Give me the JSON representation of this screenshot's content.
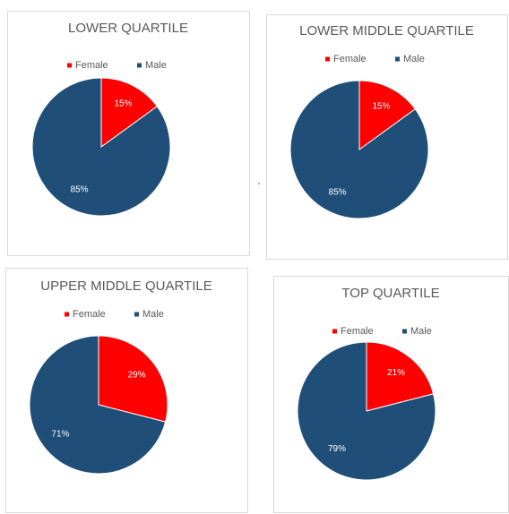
{
  "chart_data": [
    {
      "type": "pie",
      "title": "LOWER QUARTILE",
      "categories": [
        "Female",
        "Male"
      ],
      "values": [
        15,
        85
      ],
      "value_labels": [
        "15%",
        "85%"
      ],
      "colors": [
        "#ff0000",
        "#1f4e79"
      ],
      "legend": "top"
    },
    {
      "type": "pie",
      "title": "LOWER MIDDLE QUARTILE",
      "categories": [
        "Female",
        "Male"
      ],
      "values": [
        15,
        85
      ],
      "value_labels": [
        "15%",
        "85%"
      ],
      "colors": [
        "#ff0000",
        "#1f4e79"
      ],
      "legend": "top"
    },
    {
      "type": "pie",
      "title": "UPPER MIDDLE QUARTILE",
      "categories": [
        "Female",
        "Male"
      ],
      "values": [
        29,
        71
      ],
      "value_labels": [
        "29%",
        "71%"
      ],
      "colors": [
        "#ff0000",
        "#1f4e79"
      ],
      "legend": "top"
    },
    {
      "type": "pie",
      "title": "TOP QUARTILE",
      "categories": [
        "Female",
        "Male"
      ],
      "values": [
        21,
        79
      ],
      "value_labels": [
        "21%",
        "79%"
      ],
      "colors": [
        "#ff0000",
        "#1f4e79"
      ],
      "legend": "top"
    }
  ]
}
